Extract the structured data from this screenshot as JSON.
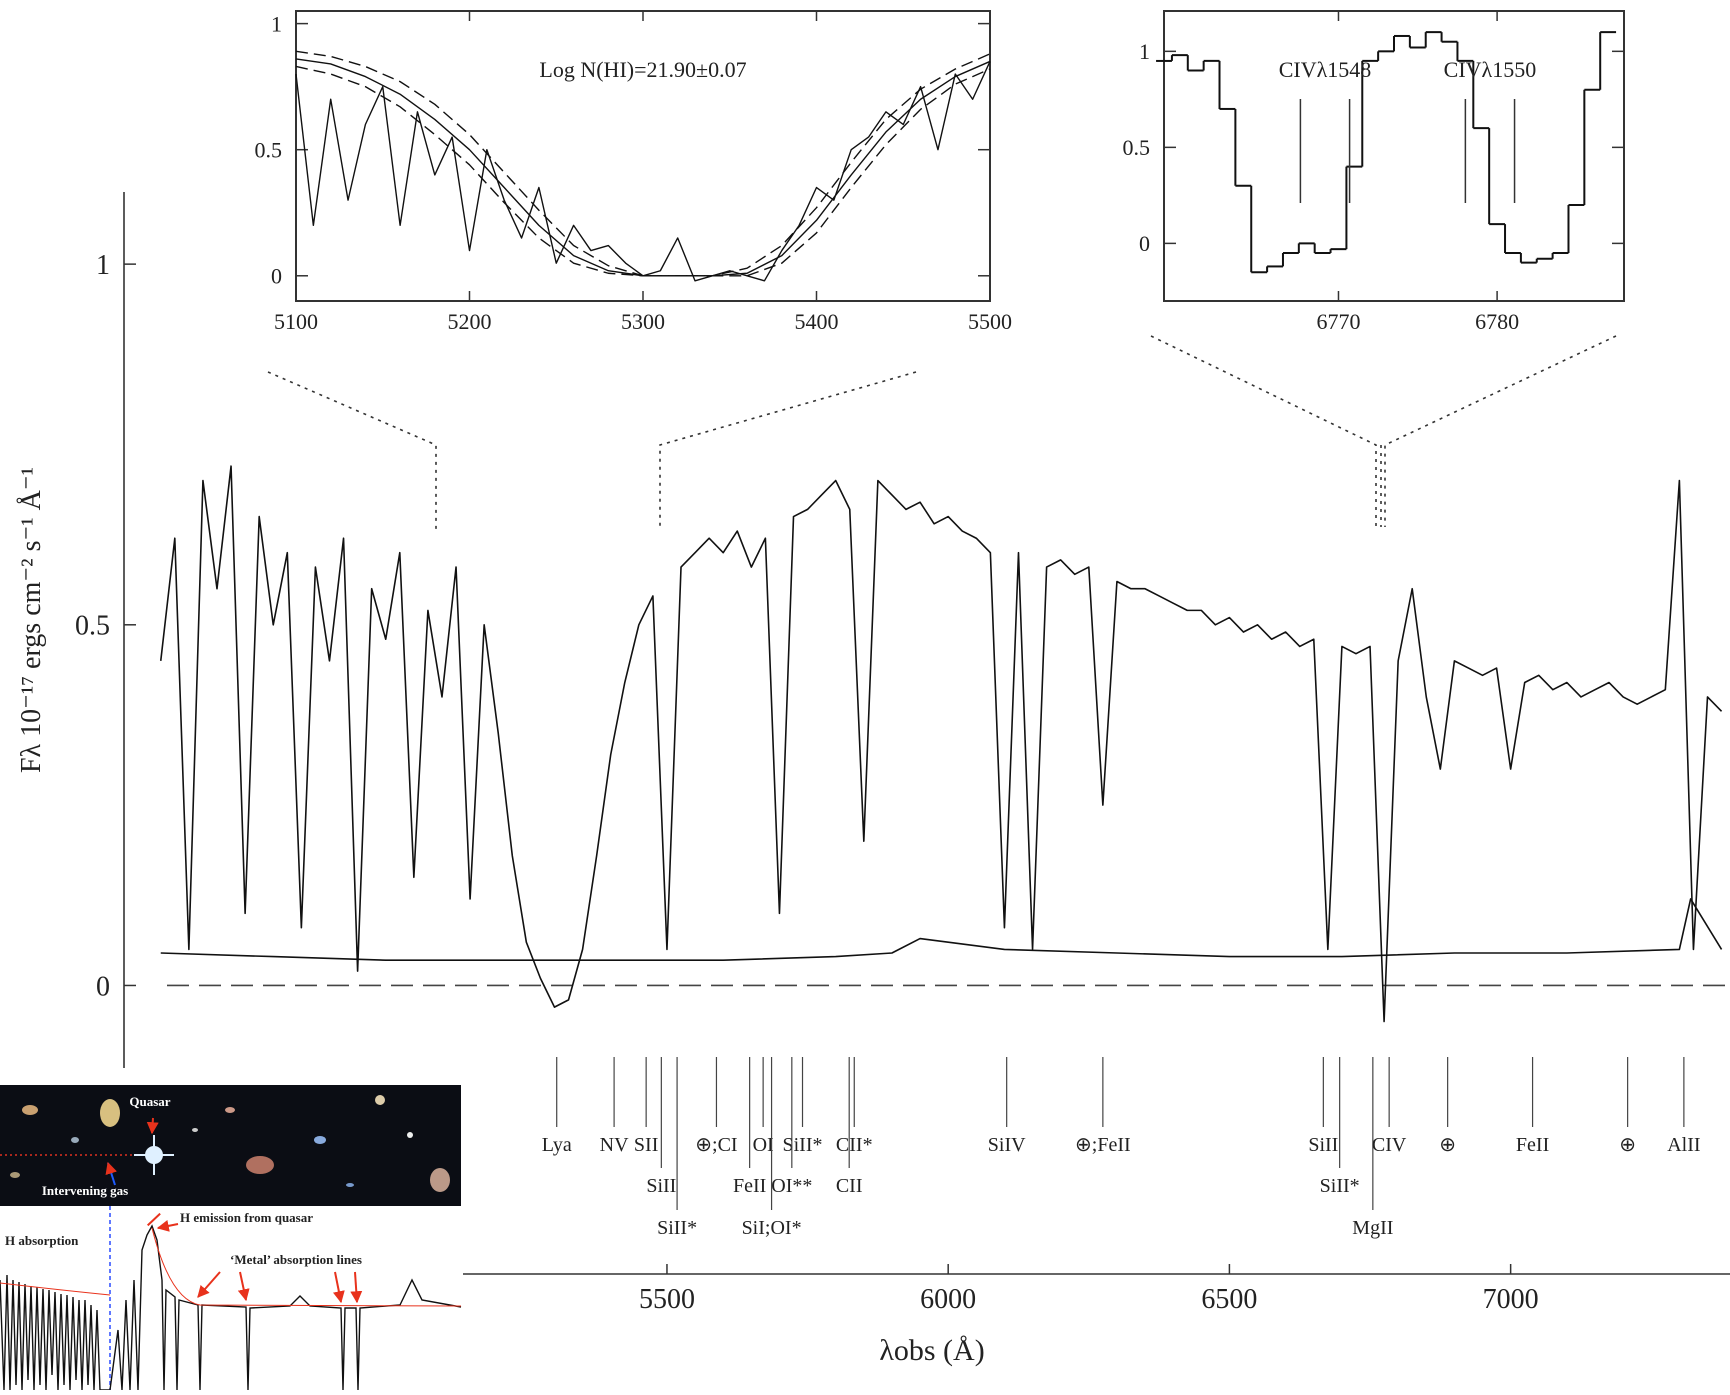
{
  "chart_data": [
    {
      "type": "line",
      "xlabel": "λobs (Å)",
      "ylabel": "Fλ 10⁻¹⁷ ergs cm⁻² s⁻¹ Å⁻¹",
      "xlim": [
        4540,
        7390
      ],
      "ylim": [
        -0.4,
        1.1
      ],
      "xticks": [
        5500,
        6000,
        6500,
        7000
      ],
      "yticks": [
        0,
        0.5,
        1
      ],
      "zero_line": true,
      "series": [
        {
          "color": "#111111",
          "x": [
            4600,
            4625,
            4650,
            4675,
            4700,
            4725,
            4750,
            4775,
            4800,
            4825,
            4850,
            4875,
            4900,
            4925,
            4950,
            4975,
            5000,
            5025,
            5050,
            5075,
            5100,
            5125,
            5150,
            5175,
            5200,
            5225,
            5250,
            5275,
            5300,
            5325,
            5350,
            5375,
            5400,
            5425,
            5450,
            5475,
            5500,
            5525,
            5550,
            5575,
            5600,
            5625,
            5650,
            5675,
            5700,
            5725,
            5750,
            5775,
            5800,
            5825,
            5850,
            5875,
            5900,
            5925,
            5950,
            5975,
            6000,
            6025,
            6050,
            6075,
            6100,
            6125,
            6150,
            6175,
            6200,
            6225,
            6250,
            6275,
            6300,
            6325,
            6350,
            6375,
            6400,
            6425,
            6450,
            6475,
            6500,
            6525,
            6550,
            6575,
            6600,
            6625,
            6650,
            6675,
            6700,
            6725,
            6750,
            6775,
            6800,
            6825,
            6850,
            6875,
            6900,
            6925,
            6950,
            6975,
            7000,
            7025,
            7050,
            7075,
            7100,
            7125,
            7150,
            7175,
            7200,
            7225,
            7250,
            7275,
            7300,
            7325,
            7350,
            7375
          ],
          "values": [
            0.45,
            0.62,
            0.05,
            0.7,
            0.55,
            0.72,
            0.1,
            0.65,
            0.5,
            0.6,
            0.08,
            0.58,
            0.45,
            0.62,
            0.02,
            0.55,
            0.48,
            0.6,
            0.15,
            0.52,
            0.4,
            0.58,
            0.12,
            0.5,
            0.35,
            0.18,
            0.06,
            0.01,
            -0.03,
            -0.02,
            0.05,
            0.18,
            0.32,
            0.42,
            0.5,
            0.54,
            0.05,
            0.58,
            0.6,
            0.62,
            0.6,
            0.63,
            0.58,
            0.62,
            0.1,
            0.65,
            0.66,
            0.68,
            0.7,
            0.66,
            0.2,
            0.7,
            0.68,
            0.66,
            0.67,
            0.64,
            0.65,
            0.63,
            0.62,
            0.6,
            0.08,
            0.6,
            0.05,
            0.58,
            0.59,
            0.57,
            0.58,
            0.25,
            0.56,
            0.55,
            0.55,
            0.54,
            0.53,
            0.52,
            0.52,
            0.5,
            0.51,
            0.49,
            0.5,
            0.48,
            0.49,
            0.47,
            0.48,
            0.05,
            0.47,
            0.46,
            0.47,
            -0.05,
            0.45,
            0.55,
            0.4,
            0.3,
            0.45,
            0.44,
            0.43,
            0.44,
            0.3,
            0.42,
            0.43,
            0.41,
            0.42,
            0.4,
            0.41,
            0.42,
            0.4,
            0.39,
            0.4,
            0.41,
            0.7,
            0.05,
            0.4,
            0.38
          ]
        },
        {
          "color": "#111111",
          "x": [
            4600,
            4800,
            5000,
            5200,
            5400,
            5600,
            5800,
            5900,
            5950,
            6100,
            6300,
            6500,
            6700,
            6900,
            7100,
            7300,
            7320,
            7375
          ],
          "values": [
            0.045,
            0.04,
            0.035,
            0.035,
            0.035,
            0.035,
            0.04,
            0.045,
            0.065,
            0.05,
            0.045,
            0.04,
            0.04,
            0.045,
            0.045,
            0.05,
            0.12,
            0.05
          ]
        }
      ],
      "line_ids": [
        {
          "label": "Lya",
          "x": 5304
        },
        {
          "label": "NV",
          "x": 5406
        },
        {
          "label": "SII",
          "x": 5463
        },
        {
          "label": "SiII",
          "x": 5490
        },
        {
          "label": "SiII*",
          "x": 5518
        },
        {
          "label": "⊕;CI",
          "x": 5588
        },
        {
          "label": "OI",
          "x": 5671
        },
        {
          "label": "FeII",
          "x": 5647
        },
        {
          "label": "SiI;OI*",
          "x": 5686
        },
        {
          "label": "SiII*",
          "x": 5741
        },
        {
          "label": "OI**",
          "x": 5722
        },
        {
          "label": "CII*",
          "x": 5833
        },
        {
          "label": "CII",
          "x": 5824
        },
        {
          "label": "SiIV",
          "x": 6104
        },
        {
          "label": "⊕;FeII",
          "x": 6275
        },
        {
          "label": "SiII",
          "x": 6667
        },
        {
          "label": "SiII*",
          "x": 6696
        },
        {
          "label": "MgII",
          "x": 6755
        },
        {
          "label": "CIV",
          "x": 6784
        },
        {
          "label": "⊕",
          "x": 6888
        },
        {
          "label": "FeII",
          "x": 7039
        },
        {
          "label": "⊕",
          "x": 7208
        },
        {
          "label": "AlII",
          "x": 7308
        }
      ]
    },
    {
      "type": "line",
      "annotation": "Log N(HI)=21.90±0.07",
      "xlim": [
        5100,
        5500
      ],
      "ylim": [
        -0.1,
        1.05
      ],
      "xticks": [
        5100,
        5200,
        5300,
        5400,
        5500
      ],
      "yticks": [
        0,
        0.5,
        1
      ],
      "series": [
        {
          "color": "#111111",
          "x": [
            5100,
            5110,
            5120,
            5130,
            5140,
            5150,
            5160,
            5170,
            5180,
            5190,
            5200,
            5210,
            5220,
            5230,
            5240,
            5250,
            5260,
            5270,
            5280,
            5290,
            5300,
            5310,
            5320,
            5330,
            5340,
            5350,
            5360,
            5370,
            5380,
            5390,
            5400,
            5410,
            5420,
            5430,
            5440,
            5450,
            5460,
            5470,
            5480,
            5490,
            5500
          ],
          "values": [
            0.8,
            0.2,
            0.7,
            0.3,
            0.6,
            0.75,
            0.2,
            0.65,
            0.4,
            0.55,
            0.1,
            0.5,
            0.3,
            0.15,
            0.35,
            0.05,
            0.2,
            0.1,
            0.12,
            0.05,
            0.0,
            0.02,
            0.15,
            -0.02,
            0.0,
            0.02,
            0.0,
            -0.02,
            0.1,
            0.2,
            0.35,
            0.3,
            0.5,
            0.55,
            0.65,
            0.6,
            0.75,
            0.5,
            0.8,
            0.7,
            0.85
          ]
        },
        {
          "color": "#111111",
          "x": [
            5100,
            5120,
            5140,
            5160,
            5180,
            5200,
            5220,
            5240,
            5260,
            5280,
            5300,
            5320,
            5340,
            5360,
            5380,
            5400,
            5420,
            5440,
            5460,
            5480,
            5500
          ],
          "values": [
            0.86,
            0.84,
            0.79,
            0.72,
            0.62,
            0.5,
            0.35,
            0.2,
            0.08,
            0.02,
            0.0,
            0.0,
            0.0,
            0.01,
            0.08,
            0.22,
            0.4,
            0.57,
            0.7,
            0.79,
            0.85
          ]
        },
        {
          "color": "#111111",
          "dash": true,
          "x": [
            5100,
            5120,
            5140,
            5160,
            5180,
            5200,
            5220,
            5240,
            5260,
            5280,
            5300,
            5320,
            5340,
            5360,
            5380,
            5400,
            5420,
            5440,
            5460,
            5480,
            5500
          ],
          "values": [
            0.89,
            0.87,
            0.83,
            0.77,
            0.68,
            0.56,
            0.41,
            0.26,
            0.12,
            0.04,
            0.0,
            0.0,
            0.0,
            0.03,
            0.12,
            0.27,
            0.45,
            0.62,
            0.74,
            0.82,
            0.88
          ]
        },
        {
          "color": "#111111",
          "dash": true,
          "x": [
            5100,
            5120,
            5140,
            5160,
            5180,
            5200,
            5220,
            5240,
            5260,
            5280,
            5300,
            5320,
            5340,
            5360,
            5380,
            5400,
            5420,
            5440,
            5460,
            5480,
            5500
          ],
          "values": [
            0.83,
            0.8,
            0.75,
            0.67,
            0.56,
            0.44,
            0.29,
            0.15,
            0.05,
            0.01,
            0,
            0,
            0,
            0,
            0.05,
            0.17,
            0.35,
            0.52,
            0.66,
            0.76,
            0.82
          ]
        }
      ]
    },
    {
      "type": "line",
      "drawstyle": "steps-mid",
      "xlim": [
        6759,
        6788
      ],
      "ylim": [
        -0.3,
        1.21
      ],
      "xticks": [
        6770,
        6780
      ],
      "yticks": [
        0,
        0.5,
        1
      ],
      "series": [
        {
          "color": "#111111",
          "x": [
            6759,
            6760,
            6761,
            6762,
            6763,
            6764,
            6765,
            6766,
            6767,
            6768,
            6769,
            6770,
            6771,
            6772,
            6773,
            6774,
            6775,
            6776,
            6777,
            6778,
            6779,
            6780,
            6781,
            6782,
            6783,
            6784,
            6785,
            6786,
            6787
          ],
          "values": [
            0.95,
            0.98,
            0.9,
            0.95,
            0.7,
            0.3,
            -0.15,
            -0.12,
            -0.05,
            0.0,
            -0.05,
            -0.03,
            0.4,
            0.95,
            1.0,
            1.08,
            1.02,
            1.1,
            1.05,
            0.95,
            0.6,
            0.1,
            -0.05,
            -0.1,
            -0.08,
            -0.05,
            0.2,
            0.8,
            1.1
          ]
        }
      ],
      "annotations": [
        {
          "text": "CIVλ1548",
          "ticks": [
            6767.6,
            6770.7
          ]
        },
        {
          "text": "CIVλ1550",
          "ticks": [
            6778.0,
            6781.1
          ]
        }
      ]
    }
  ],
  "illustration": {
    "quasar": "Quasar",
    "gas": "Intervening gas",
    "emission": "H emission from quasar",
    "absorption": "H absorption",
    "metal": "‘Metal’ absorption lines"
  }
}
